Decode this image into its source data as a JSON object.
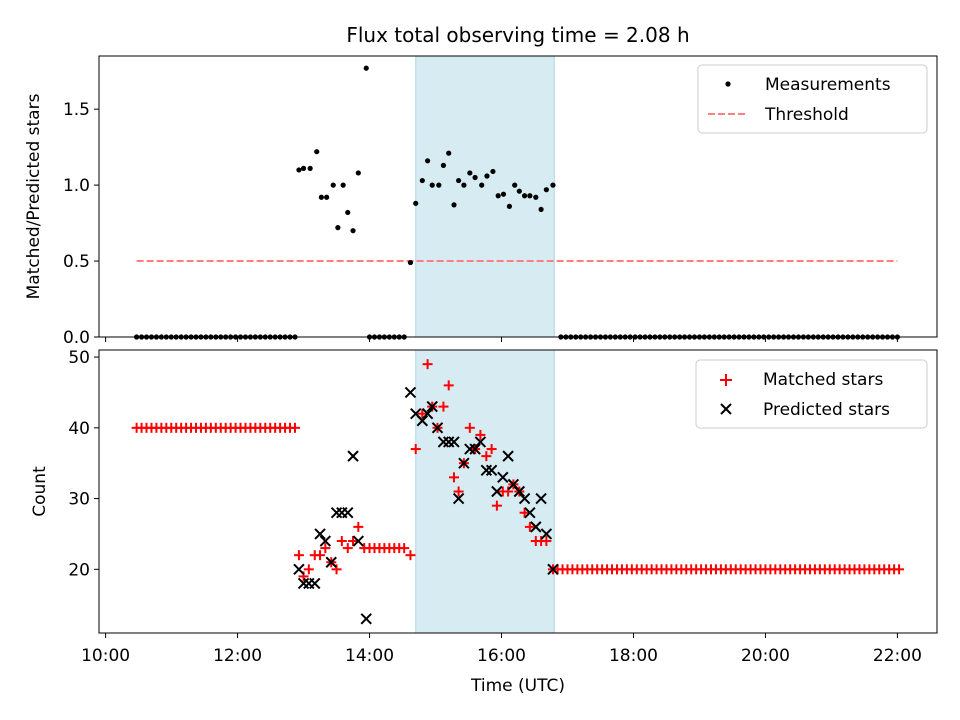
{
  "title": "Flux total observing time = 2.08 h",
  "xlabel": "Time (UTC)",
  "colors": {
    "measurement": "#000000",
    "threshold": "#ff7f7f",
    "matched": "#ff0000",
    "predicted": "#000000",
    "shade": "#add8e6"
  },
  "chart_data": [
    {
      "type": "scatter",
      "ylabel": "Matched/Predicted stars",
      "xlim": [
        9.9,
        22.6
      ],
      "ylim": [
        0,
        1.85
      ],
      "yticks": [
        0.0,
        0.5,
        1.0,
        1.5
      ],
      "yticklabels": [
        "0.0",
        "0.5",
        "1.0",
        "1.5"
      ],
      "legend_position": "top-right",
      "legend": [
        {
          "label": "Measurements",
          "marker": "dot"
        },
        {
          "label": "Threshold",
          "marker": "dashed-line"
        }
      ],
      "shaded_region": [
        14.7,
        16.8
      ],
      "threshold": {
        "value": 0.5,
        "x": [
          10.47,
          22.0
        ]
      },
      "zero_series": {
        "ranges": [
          [
            10.47,
            12.9
          ],
          [
            14.0,
            14.55
          ],
          [
            16.9,
            22.05
          ]
        ],
        "step": 0.075
      },
      "points": [
        [
          12.93,
          1.1
        ],
        [
          13.0,
          1.11
        ],
        [
          13.1,
          1.11
        ],
        [
          13.2,
          1.22
        ],
        [
          13.27,
          0.92
        ],
        [
          13.35,
          0.92
        ],
        [
          13.45,
          1.0
        ],
        [
          13.52,
          0.72
        ],
        [
          13.6,
          1.0
        ],
        [
          13.67,
          0.82
        ],
        [
          13.75,
          0.7
        ],
        [
          13.83,
          1.08
        ],
        [
          13.95,
          1.77
        ],
        [
          14.62,
          0.49
        ],
        [
          14.7,
          0.88
        ],
        [
          14.8,
          1.03
        ],
        [
          14.88,
          1.16
        ],
        [
          14.95,
          1.0
        ],
        [
          15.05,
          1.0
        ],
        [
          15.12,
          1.13
        ],
        [
          15.2,
          1.21
        ],
        [
          15.28,
          0.87
        ],
        [
          15.35,
          1.03
        ],
        [
          15.43,
          1.0
        ],
        [
          15.52,
          1.08
        ],
        [
          15.6,
          1.05
        ],
        [
          15.7,
          1.0
        ],
        [
          15.78,
          1.06
        ],
        [
          15.87,
          1.09
        ],
        [
          15.95,
          0.93
        ],
        [
          16.03,
          0.94
        ],
        [
          16.12,
          0.86
        ],
        [
          16.2,
          1.0
        ],
        [
          16.27,
          0.96
        ],
        [
          16.35,
          0.93
        ],
        [
          16.43,
          0.93
        ],
        [
          16.52,
          0.92
        ],
        [
          16.6,
          0.84
        ],
        [
          16.68,
          0.97
        ],
        [
          16.78,
          1.0
        ]
      ]
    },
    {
      "type": "scatter",
      "ylabel": "Count",
      "xlim": [
        9.9,
        22.6
      ],
      "ylim": [
        11,
        51
      ],
      "yticks": [
        20,
        30,
        40,
        50
      ],
      "yticklabels": [
        "20",
        "30",
        "40",
        "50"
      ],
      "xticks": [
        10,
        12,
        14,
        16,
        18,
        20,
        22
      ],
      "xticklabels": [
        "10:00",
        "12:00",
        "14:00",
        "16:00",
        "18:00",
        "20:00",
        "22:00"
      ],
      "legend_position": "top-right",
      "legend": [
        {
          "label": "Matched stars",
          "marker": "plus"
        },
        {
          "label": "Predicted stars",
          "marker": "x"
        }
      ],
      "shaded_region": [
        14.7,
        16.8
      ],
      "matched_constant_runs": [
        {
          "range": [
            10.47,
            12.9
          ],
          "value": 40,
          "step": 0.075
        },
        {
          "range": [
            14.0,
            14.55
          ],
          "value": 23,
          "step": 0.075
        },
        {
          "range": [
            16.85,
            22.05
          ],
          "value": 20,
          "step": 0.075
        }
      ],
      "matched_points": [
        [
          12.93,
          22
        ],
        [
          13.0,
          19
        ],
        [
          13.08,
          20
        ],
        [
          13.17,
          22
        ],
        [
          13.25,
          22
        ],
        [
          13.33,
          23
        ],
        [
          13.42,
          21
        ],
        [
          13.5,
          20
        ],
        [
          13.58,
          24
        ],
        [
          13.67,
          23
        ],
        [
          13.75,
          24
        ],
        [
          13.83,
          26
        ],
        [
          13.92,
          23
        ],
        [
          14.62,
          22
        ],
        [
          14.7,
          37
        ],
        [
          14.8,
          42
        ],
        [
          14.88,
          49
        ],
        [
          14.95,
          43
        ],
        [
          15.03,
          40
        ],
        [
          15.12,
          43
        ],
        [
          15.2,
          46
        ],
        [
          15.28,
          33
        ],
        [
          15.35,
          31
        ],
        [
          15.43,
          35
        ],
        [
          15.52,
          40
        ],
        [
          15.6,
          37
        ],
        [
          15.68,
          39
        ],
        [
          15.77,
          36
        ],
        [
          15.85,
          37
        ],
        [
          15.93,
          29
        ],
        [
          16.02,
          31
        ],
        [
          16.1,
          31
        ],
        [
          16.18,
          32
        ],
        [
          16.27,
          31
        ],
        [
          16.35,
          28
        ],
        [
          16.43,
          26
        ],
        [
          16.52,
          24
        ],
        [
          16.6,
          24
        ],
        [
          16.68,
          24
        ],
        [
          16.78,
          20
        ]
      ],
      "predicted_points": [
        [
          12.93,
          20
        ],
        [
          13.0,
          18
        ],
        [
          13.08,
          18
        ],
        [
          13.17,
          18
        ],
        [
          13.25,
          25
        ],
        [
          13.33,
          24
        ],
        [
          13.42,
          21
        ],
        [
          13.5,
          28
        ],
        [
          13.58,
          28
        ],
        [
          13.67,
          28
        ],
        [
          13.75,
          36
        ],
        [
          13.83,
          24
        ],
        [
          13.95,
          13
        ],
        [
          14.62,
          45
        ],
        [
          14.7,
          42
        ],
        [
          14.8,
          41
        ],
        [
          14.88,
          42
        ],
        [
          14.95,
          43
        ],
        [
          15.03,
          40
        ],
        [
          15.12,
          38
        ],
        [
          15.2,
          38
        ],
        [
          15.28,
          38
        ],
        [
          15.35,
          30
        ],
        [
          15.43,
          35
        ],
        [
          15.52,
          37
        ],
        [
          15.6,
          37
        ],
        [
          15.68,
          38
        ],
        [
          15.77,
          34
        ],
        [
          15.85,
          34
        ],
        [
          15.93,
          31
        ],
        [
          16.02,
          33
        ],
        [
          16.1,
          36
        ],
        [
          16.18,
          32
        ],
        [
          16.27,
          31
        ],
        [
          16.35,
          30
        ],
        [
          16.43,
          28
        ],
        [
          16.52,
          26
        ],
        [
          16.6,
          30
        ],
        [
          16.68,
          25
        ],
        [
          16.78,
          20
        ]
      ]
    }
  ]
}
